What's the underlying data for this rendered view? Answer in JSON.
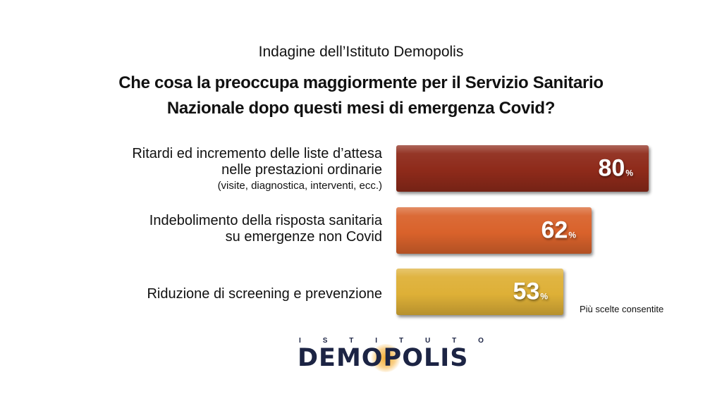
{
  "header": {
    "subtitle": "Indagine dell’Istituto Demopolis",
    "title_line1": "Che cosa la preoccupa maggiormente per il Servizio Sanitario",
    "title_line2": "Nazionale dopo questi mesi di emergenza Covid?"
  },
  "chart_data": {
    "type": "bar",
    "orientation": "horizontal",
    "categories": [
      "Ritardi ed incremento delle liste d’attesa nelle prestazioni ordinarie (visite, diagnostica, interventi, ecc.)",
      "Indebolimento della risposta sanitaria su emergenze non Covid",
      "Riduzione di screening e prevenzione"
    ],
    "values": [
      80,
      62,
      53
    ],
    "value_unit": "%",
    "colors": [
      "#8e2a1a",
      "#d9622b",
      "#deb037"
    ]
  },
  "labels": [
    {
      "line1": "Ritardi ed incremento delle liste d’attesa",
      "line2": "nelle prestazioni ordinarie",
      "line3": "(visite, diagnostica, interventi, ecc.)"
    },
    {
      "line1": "Indebolimento della risposta sanitaria",
      "line2": "su emergenze non Covid"
    },
    {
      "line1": "Riduzione di screening e prevenzione"
    }
  ],
  "value_labels": [
    "80",
    "62",
    "53"
  ],
  "percent_sign": "%",
  "note": "Più scelte consentite",
  "logo": {
    "top_letters": [
      "I",
      "S",
      "T",
      "I",
      "T",
      "U",
      "T",
      "O"
    ],
    "main": "DEMOPOLIS"
  }
}
